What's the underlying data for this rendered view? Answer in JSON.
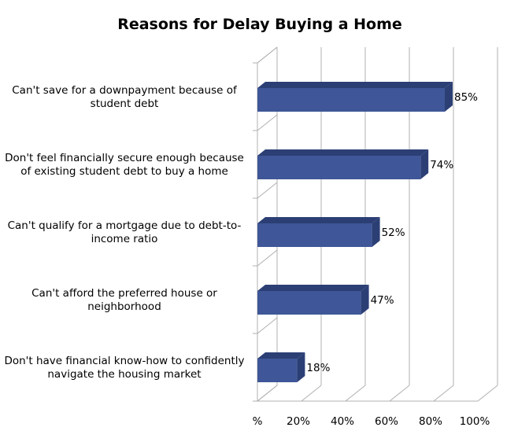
{
  "chart_data": {
    "type": "bar",
    "orientation": "horizontal",
    "title": "Reasons for Delay Buying a Home",
    "categories": [
      [
        "Can't save for a downpayment because of",
        "student debt"
      ],
      [
        "Don't feel financially secure enough because",
        "of existing student debt to buy a home"
      ],
      [
        "Can't qualify for a mortgage due to debt-to-",
        "income ratio"
      ],
      [
        "Can't afford the preferred house or",
        "neighborhood"
      ],
      [
        "Don't have financial know-how to confidently",
        "navigate the housing market"
      ]
    ],
    "values": [
      85,
      74,
      52,
      47,
      18
    ],
    "data_labels": [
      "85%",
      "74%",
      "52%",
      "47%",
      "18%"
    ],
    "xlim": [
      0,
      100
    ],
    "x_ticks": [
      0,
      20,
      40,
      60,
      80,
      100
    ],
    "x_tick_labels": [
      "%",
      "20%",
      "40%",
      "60%",
      "80%",
      "100%"
    ],
    "grid": true,
    "bar_color": "#3f5798",
    "bar_top_color": "#2c3f75",
    "grid_color": "#b0b0b0"
  }
}
